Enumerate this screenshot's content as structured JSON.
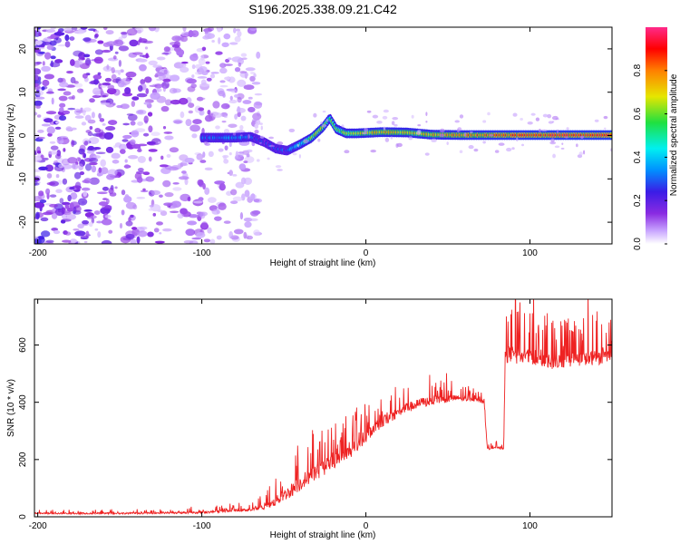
{
  "figure_title": "S196.2025.338.09.21.C42",
  "colors": {
    "snr_line": "#ee2222",
    "noise_purple": "#7a22e8",
    "colormap": [
      "#ffffff",
      "#c9a6ff",
      "#8a2be2",
      "#3b1ce6",
      "#0090ff",
      "#00f0f0",
      "#20e040",
      "#e6e600",
      "#ff8000",
      "#ff0000",
      "#ff2a8a"
    ]
  },
  "chart_data": [
    {
      "type": "heatmap",
      "title": "",
      "xlabel": "Height of straight line (km)",
      "ylabel": "Frequency (Hz)",
      "xlim": [
        -202,
        150
      ],
      "ylim": [
        -25,
        25
      ],
      "x_ticks": [
        -200,
        -100,
        0,
        100
      ],
      "x_tick_labels": [
        "-200",
        "-100",
        "0",
        "100"
      ],
      "y_ticks": [
        20,
        10,
        0,
        -10,
        -20
      ],
      "y_tick_labels": [
        "20",
        "10",
        "0",
        "-10",
        "-20"
      ],
      "description_regions": {
        "noise_x_range": [
          -202,
          -65
        ],
        "signal_start_x": -100
      },
      "ridge": {
        "x": [
          -100,
          -80,
          -70,
          -62,
          -55,
          -48,
          -40,
          -33,
          -26,
          -22,
          -18,
          -12,
          -6,
          0,
          10,
          25,
          40,
          60,
          80,
          100,
          120,
          150
        ],
        "frequency": [
          -0.5,
          -0.5,
          -0.3,
          -1.5,
          -3,
          -3.5,
          -2,
          -0.5,
          2,
          4,
          1.5,
          0.5,
          0.5,
          0.6,
          0.8,
          0.7,
          0.2,
          0.1,
          0.1,
          0.1,
          0.1,
          0.1
        ],
        "amplitude": [
          0.3,
          0.35,
          0.3,
          0.25,
          0.3,
          0.3,
          0.45,
          0.65,
          0.7,
          0.55,
          0.6,
          0.65,
          0.7,
          0.7,
          0.75,
          0.7,
          0.75,
          0.8,
          0.85,
          0.88,
          0.9,
          0.9
        ]
      },
      "colorbar": {
        "label": "Normalized spectral amplitude",
        "range": [
          0,
          1
        ],
        "ticks": [
          0.0,
          0.2,
          0.4,
          0.6,
          0.8
        ],
        "tick_labels": [
          "0.0",
          "0.2",
          "0.4",
          "0.6",
          "0.8"
        ]
      }
    },
    {
      "type": "line",
      "title": "",
      "xlabel": "Height of straight line (km)",
      "ylabel": "SNR (10 * v/v)",
      "xlim": [
        -202,
        150
      ],
      "ylim": [
        0,
        760
      ],
      "x_ticks": [
        -200,
        -100,
        0,
        100
      ],
      "x_tick_labels": [
        "-200",
        "-100",
        "0",
        "100"
      ],
      "y_ticks": [
        0,
        200,
        400,
        600
      ],
      "y_tick_labels": [
        "0",
        "200",
        "400",
        "600"
      ],
      "series": [
        {
          "name": "SNR",
          "x": [
            -202,
            -150,
            -100,
            -70,
            -60,
            -55,
            -45,
            -35,
            -25,
            -15,
            -5,
            5,
            15,
            25,
            35,
            45,
            55,
            65,
            72,
            74,
            75,
            82,
            84,
            85,
            88,
            95,
            110,
            130,
            150
          ],
          "base": [
            12,
            12,
            15,
            25,
            35,
            55,
            95,
            140,
            175,
            205,
            250,
            310,
            350,
            380,
            400,
            410,
            415,
            410,
            400,
            240,
            240,
            240,
            240,
            560,
            565,
            560,
            540,
            550,
            560
          ],
          "spike": [
            15,
            15,
            20,
            25,
            60,
            90,
            140,
            160,
            160,
            150,
            130,
            110,
            110,
            100,
            100,
            90,
            60,
            40,
            30,
            25,
            25,
            25,
            25,
            180,
            190,
            170,
            150,
            140,
            140
          ]
        }
      ]
    }
  ]
}
